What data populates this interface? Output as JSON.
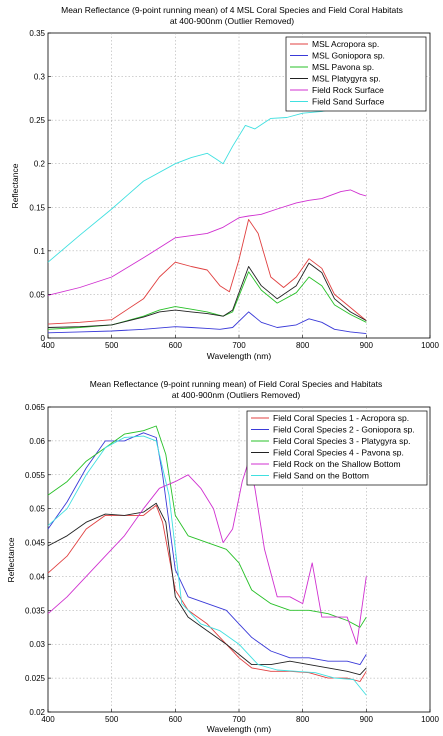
{
  "chart_data": [
    {
      "type": "line",
      "title": "Mean Reflectance (9-point running mean) of 4 MSL Coral Species and Field Coral Habitats",
      "subtitle": "at 400-900nm (Outlier Removed)",
      "xlabel": "Wavelength (nm)",
      "ylabel": "Reflectance",
      "xlim": [
        400,
        1000
      ],
      "ylim": [
        0,
        0.35
      ],
      "xticks": [
        "400",
        "500",
        "600",
        "700",
        "800",
        "900",
        "1000"
      ],
      "yticks": [
        "0",
        "0.05",
        "0.1",
        "0.15",
        "0.2",
        "0.25",
        "0.3",
        "0.35"
      ],
      "grid": true,
      "legend_position": "top-right",
      "series": [
        {
          "name": "MSL Acropora sp.",
          "color": "#e04040",
          "points": [
            [
              400,
              0.016
            ],
            [
              450,
              0.018
            ],
            [
              500,
              0.021
            ],
            [
              550,
              0.045
            ],
            [
              575,
              0.07
            ],
            [
              600,
              0.087
            ],
            [
              625,
              0.082
            ],
            [
              650,
              0.078
            ],
            [
              670,
              0.06
            ],
            [
              685,
              0.053
            ],
            [
              700,
              0.09
            ],
            [
              715,
              0.136
            ],
            [
              730,
              0.12
            ],
            [
              750,
              0.07
            ],
            [
              770,
              0.058
            ],
            [
              790,
              0.07
            ],
            [
              810,
              0.091
            ],
            [
              830,
              0.08
            ],
            [
              850,
              0.05
            ],
            [
              875,
              0.035
            ],
            [
              900,
              0.02
            ]
          ]
        },
        {
          "name": "MSL Goniopora sp.",
          "color": "#3a3ad8",
          "points": [
            [
              400,
              0.006
            ],
            [
              450,
              0.007
            ],
            [
              500,
              0.008
            ],
            [
              550,
              0.01
            ],
            [
              600,
              0.013
            ],
            [
              625,
              0.012
            ],
            [
              650,
              0.011
            ],
            [
              670,
              0.01
            ],
            [
              690,
              0.012
            ],
            [
              715,
              0.03
            ],
            [
              735,
              0.018
            ],
            [
              760,
              0.012
            ],
            [
              790,
              0.015
            ],
            [
              810,
              0.022
            ],
            [
              830,
              0.018
            ],
            [
              850,
              0.01
            ],
            [
              875,
              0.007
            ],
            [
              900,
              0.005
            ]
          ]
        },
        {
          "name": "MSL Pavona sp.",
          "color": "#28c028",
          "points": [
            [
              400,
              0.01
            ],
            [
              450,
              0.012
            ],
            [
              500,
              0.015
            ],
            [
              550,
              0.025
            ],
            [
              575,
              0.032
            ],
            [
              600,
              0.036
            ],
            [
              625,
              0.033
            ],
            [
              650,
              0.03
            ],
            [
              675,
              0.025
            ],
            [
              690,
              0.03
            ],
            [
              715,
              0.076
            ],
            [
              735,
              0.055
            ],
            [
              760,
              0.04
            ],
            [
              790,
              0.052
            ],
            [
              810,
              0.07
            ],
            [
              830,
              0.06
            ],
            [
              850,
              0.038
            ],
            [
              875,
              0.027
            ],
            [
              900,
              0.018
            ]
          ]
        },
        {
          "name": "MSL Platygyra sp.",
          "color": "#222222",
          "points": [
            [
              400,
              0.012
            ],
            [
              450,
              0.013
            ],
            [
              500,
              0.015
            ],
            [
              550,
              0.024
            ],
            [
              575,
              0.03
            ],
            [
              600,
              0.032
            ],
            [
              625,
              0.03
            ],
            [
              650,
              0.028
            ],
            [
              675,
              0.025
            ],
            [
              690,
              0.032
            ],
            [
              715,
              0.082
            ],
            [
              735,
              0.06
            ],
            [
              760,
              0.045
            ],
            [
              790,
              0.06
            ],
            [
              810,
              0.086
            ],
            [
              830,
              0.075
            ],
            [
              850,
              0.045
            ],
            [
              875,
              0.03
            ],
            [
              900,
              0.02
            ]
          ]
        },
        {
          "name": "Field Rock Surface",
          "color": "#d030d0",
          "points": [
            [
              400,
              0.049
            ],
            [
              450,
              0.058
            ],
            [
              500,
              0.07
            ],
            [
              550,
              0.092
            ],
            [
              600,
              0.115
            ],
            [
              650,
              0.12
            ],
            [
              675,
              0.127
            ],
            [
              700,
              0.138
            ],
            [
              715,
              0.14
            ],
            [
              735,
              0.142
            ],
            [
              760,
              0.148
            ],
            [
              790,
              0.155
            ],
            [
              810,
              0.158
            ],
            [
              830,
              0.16
            ],
            [
              860,
              0.168
            ],
            [
              875,
              0.17
            ],
            [
              890,
              0.165
            ],
            [
              900,
              0.163
            ]
          ]
        },
        {
          "name": "Field Sand Surface",
          "color": "#40e0e0",
          "points": [
            [
              400,
              0.087
            ],
            [
              450,
              0.118
            ],
            [
              500,
              0.148
            ],
            [
              550,
              0.18
            ],
            [
              600,
              0.2
            ],
            [
              625,
              0.207
            ],
            [
              650,
              0.212
            ],
            [
              665,
              0.205
            ],
            [
              675,
              0.2
            ],
            [
              690,
              0.22
            ],
            [
              710,
              0.244
            ],
            [
              725,
              0.24
            ],
            [
              750,
              0.252
            ],
            [
              775,
              0.253
            ],
            [
              800,
              0.258
            ],
            [
              830,
              0.26
            ],
            [
              860,
              0.265
            ],
            [
              875,
              0.27
            ]
          ]
        }
      ]
    },
    {
      "type": "line",
      "title": "Mean Reflectance (9-point running mean) of Field Coral Species and Habitats",
      "subtitle": "at 400-900nm (Outliers Removed)",
      "xlabel": "Wavelength (nm)",
      "ylabel": "Reflectance",
      "xlim": [
        400,
        1000
      ],
      "ylim": [
        0.02,
        0.065
      ],
      "xticks": [
        "400",
        "500",
        "600",
        "700",
        "800",
        "900",
        "1000"
      ],
      "yticks": [
        "0.02",
        "0.025",
        "0.03",
        "0.035",
        "0.04",
        "0.045",
        "0.05",
        "0.055",
        "0.06",
        "0.065"
      ],
      "grid": true,
      "legend_position": "top-right",
      "series": [
        {
          "name": "Field Coral Species 1 - Acropora sp.",
          "color": "#e04040",
          "points": [
            [
              400,
              0.0405
            ],
            [
              430,
              0.043
            ],
            [
              460,
              0.047
            ],
            [
              490,
              0.049
            ],
            [
              520,
              0.049
            ],
            [
              550,
              0.049
            ],
            [
              570,
              0.0505
            ],
            [
              580,
              0.048
            ],
            [
              600,
              0.038
            ],
            [
              620,
              0.035
            ],
            [
              650,
              0.033
            ],
            [
              680,
              0.03
            ],
            [
              700,
              0.028
            ],
            [
              720,
              0.0265
            ],
            [
              750,
              0.026
            ],
            [
              780,
              0.026
            ],
            [
              810,
              0.0258
            ],
            [
              840,
              0.025
            ],
            [
              870,
              0.025
            ],
            [
              890,
              0.0245
            ],
            [
              900,
              0.026
            ]
          ]
        },
        {
          "name": "Field Coral Species 2 - Goniopora sp.",
          "color": "#3a3ad8",
          "points": [
            [
              400,
              0.047
            ],
            [
              430,
              0.051
            ],
            [
              460,
              0.056
            ],
            [
              490,
              0.06
            ],
            [
              520,
              0.06
            ],
            [
              550,
              0.0612
            ],
            [
              570,
              0.0605
            ],
            [
              580,
              0.055
            ],
            [
              600,
              0.041
            ],
            [
              620,
              0.037
            ],
            [
              650,
              0.036
            ],
            [
              680,
              0.035
            ],
            [
              700,
              0.033
            ],
            [
              720,
              0.031
            ],
            [
              750,
              0.029
            ],
            [
              780,
              0.028
            ],
            [
              810,
              0.028
            ],
            [
              840,
              0.0275
            ],
            [
              870,
              0.0275
            ],
            [
              890,
              0.027
            ],
            [
              900,
              0.0285
            ]
          ]
        },
        {
          "name": "Field Coral Species 3 - Platygyra sp.",
          "color": "#28c028",
          "points": [
            [
              400,
              0.052
            ],
            [
              430,
              0.054
            ],
            [
              460,
              0.057
            ],
            [
              490,
              0.059
            ],
            [
              520,
              0.061
            ],
            [
              550,
              0.0615
            ],
            [
              570,
              0.0622
            ],
            [
              585,
              0.058
            ],
            [
              600,
              0.049
            ],
            [
              620,
              0.046
            ],
            [
              650,
              0.045
            ],
            [
              680,
              0.044
            ],
            [
              700,
              0.042
            ],
            [
              720,
              0.038
            ],
            [
              750,
              0.036
            ],
            [
              780,
              0.035
            ],
            [
              810,
              0.035
            ],
            [
              840,
              0.0345
            ],
            [
              870,
              0.0335
            ],
            [
              890,
              0.0325
            ],
            [
              900,
              0.034
            ]
          ]
        },
        {
          "name": "Field Coral Species 4 - Pavona sp.",
          "color": "#222222",
          "points": [
            [
              400,
              0.0445
            ],
            [
              430,
              0.046
            ],
            [
              460,
              0.048
            ],
            [
              490,
              0.0492
            ],
            [
              520,
              0.049
            ],
            [
              550,
              0.0495
            ],
            [
              570,
              0.0508
            ],
            [
              585,
              0.048
            ],
            [
              600,
              0.037
            ],
            [
              620,
              0.034
            ],
            [
              650,
              0.032
            ],
            [
              680,
              0.03
            ],
            [
              700,
              0.0285
            ],
            [
              720,
              0.027
            ],
            [
              750,
              0.027
            ],
            [
              780,
              0.0275
            ],
            [
              810,
              0.027
            ],
            [
              840,
              0.0265
            ],
            [
              870,
              0.026
            ],
            [
              890,
              0.0255
            ],
            [
              900,
              0.0265
            ]
          ]
        },
        {
          "name": "Field Rock on the Shallow Bottom",
          "color": "#d030d0",
          "points": [
            [
              400,
              0.0345
            ],
            [
              430,
              0.037
            ],
            [
              460,
              0.04
            ],
            [
              490,
              0.043
            ],
            [
              520,
              0.046
            ],
            [
              550,
              0.05
            ],
            [
              575,
              0.053
            ],
            [
              600,
              0.054
            ],
            [
              620,
              0.055
            ],
            [
              640,
              0.053
            ],
            [
              660,
              0.05
            ],
            [
              675,
              0.045
            ],
            [
              690,
              0.047
            ],
            [
              705,
              0.054
            ],
            [
              715,
              0.057
            ],
            [
              725,
              0.053
            ],
            [
              740,
              0.044
            ],
            [
              760,
              0.037
            ],
            [
              780,
              0.037
            ],
            [
              800,
              0.036
            ],
            [
              815,
              0.042
            ],
            [
              830,
              0.034
            ],
            [
              850,
              0.034
            ],
            [
              870,
              0.034
            ],
            [
              885,
              0.03
            ],
            [
              900,
              0.04
            ]
          ]
        },
        {
          "name": "Field Sand on the Bottom",
          "color": "#40e0e0",
          "points": [
            [
              400,
              0.0475
            ],
            [
              430,
              0.05
            ],
            [
              460,
              0.055
            ],
            [
              490,
              0.059
            ],
            [
              520,
              0.0605
            ],
            [
              550,
              0.0607
            ],
            [
              570,
              0.06
            ],
            [
              590,
              0.052
            ],
            [
              610,
              0.036
            ],
            [
              640,
              0.033
            ],
            [
              670,
              0.032
            ],
            [
              700,
              0.03
            ],
            [
              730,
              0.027
            ],
            [
              760,
              0.0262
            ],
            [
              790,
              0.026
            ],
            [
              820,
              0.0258
            ],
            [
              850,
              0.025
            ],
            [
              880,
              0.0248
            ],
            [
              900,
              0.0225
            ]
          ]
        }
      ]
    }
  ]
}
